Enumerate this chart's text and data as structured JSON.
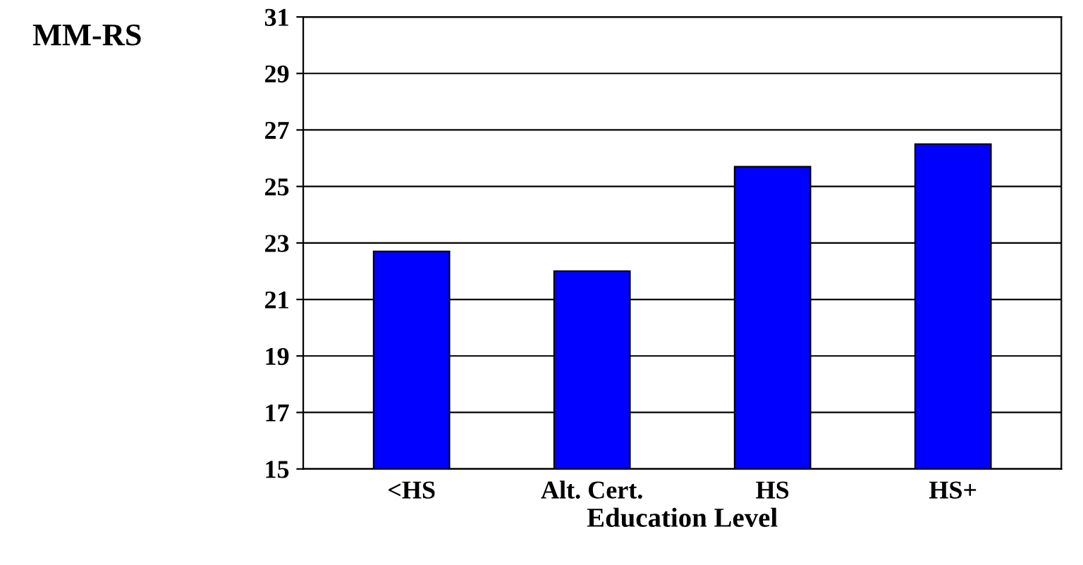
{
  "chart_data": {
    "type": "bar",
    "ylabel": "MM-RS",
    "xlabel": "Education Level",
    "categories": [
      "<HS",
      "Alt. Cert.",
      "HS",
      "HS+"
    ],
    "values": [
      22.7,
      22.0,
      25.7,
      26.5
    ],
    "color": "#0000ff",
    "ylim": [
      15,
      31
    ],
    "yticks": [
      15,
      17,
      19,
      21,
      23,
      25,
      27,
      29,
      31
    ],
    "grid": "y",
    "legend": false
  }
}
